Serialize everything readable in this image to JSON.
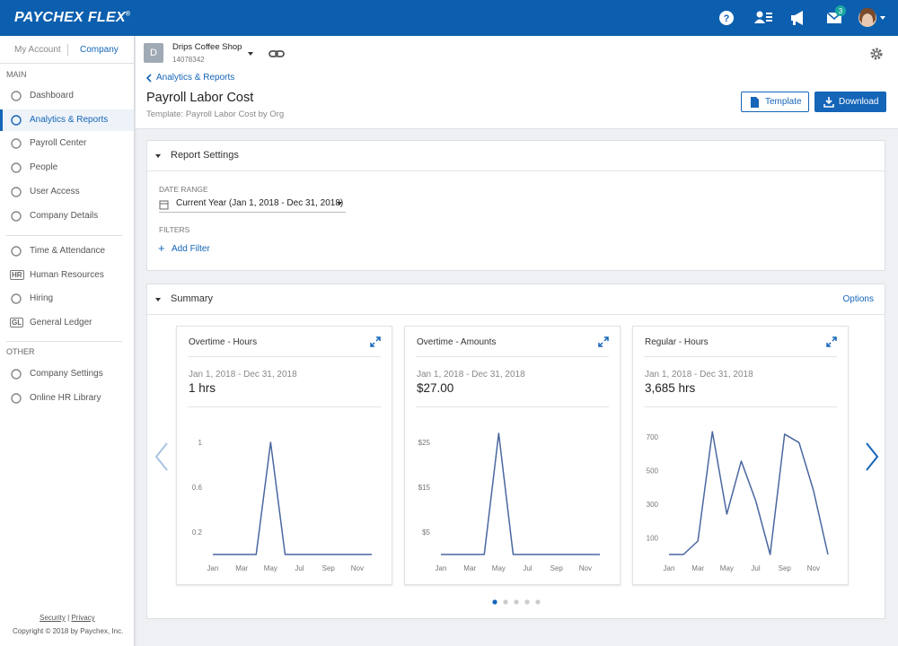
{
  "header": {
    "brand": "PAYCHEX FLEX",
    "brand_mark": "®",
    "badge": "3"
  },
  "sidebar": {
    "tabs": [
      "My Account",
      "Company"
    ],
    "main_label": "MAIN",
    "main": [
      {
        "label": "Dashboard"
      },
      {
        "label": "Analytics & Reports",
        "active": true
      },
      {
        "label": "Payroll Center"
      },
      {
        "label": "People"
      },
      {
        "label": "User Access"
      },
      {
        "label": "Company Details"
      }
    ],
    "more": [
      {
        "label": "Time & Attendance"
      },
      {
        "label": "Human Resources",
        "icon": "HR"
      },
      {
        "label": "Hiring"
      },
      {
        "label": "General Ledger",
        "icon": "GL"
      }
    ],
    "other_label": "OTHER",
    "other": [
      {
        "label": "Company Settings"
      },
      {
        "label": "Online HR Library"
      }
    ],
    "footer_links": [
      "Security",
      "Privacy"
    ],
    "footer_separator": "|",
    "copyright": "Copyright © 2018 by Paychex, Inc."
  },
  "company": {
    "initial": "D",
    "name": "Drips Coffee Shop",
    "id": "14078342"
  },
  "breadcrumb": "Analytics & Reports",
  "page": {
    "title": "Payroll Labor Cost",
    "subtitle": "Template: Payroll Labor Cost by Org"
  },
  "buttons": {
    "template": "Template",
    "download": "Download"
  },
  "report_settings": {
    "title": "Report Settings",
    "date_range_label": "DATE RANGE",
    "date_range": "Current Year (Jan 1, 2018 - Dec 31, 2018)",
    "filters_label": "FILTERS",
    "add_filter": "Add Filter"
  },
  "summary": {
    "title": "Summary",
    "options": "Options"
  },
  "chart_data": [
    {
      "type": "line",
      "title": "Overtime - Hours",
      "date_range": "Jan 1, 2018 - Dec 31, 2018",
      "total": "1 hrs",
      "categories": [
        "Jan",
        null,
        "Mar",
        null,
        "May",
        null,
        "Jul",
        null,
        "Sep",
        null,
        "Nov",
        null
      ],
      "values": [
        0,
        0,
        0,
        0,
        1,
        0,
        0,
        0,
        0,
        0,
        0,
        0
      ],
      "color": "#4a679f",
      "ylim": [
        0,
        1.2
      ],
      "yticks": [
        0.2,
        0.6,
        1
      ],
      "grid": false
    },
    {
      "type": "line",
      "title": "Overtime - Amounts",
      "date_range": "Jan 1, 2018 - Dec 31, 2018",
      "total": "$27.00",
      "categories": [
        "Jan",
        null,
        "Mar",
        null,
        "May",
        null,
        "Jul",
        null,
        "Sep",
        null,
        "Nov",
        null
      ],
      "values": [
        0,
        0,
        0,
        0,
        27,
        0,
        0,
        0,
        0,
        0,
        0,
        0
      ],
      "color": "#4a679f",
      "ylim": [
        0,
        30
      ],
      "yticks": [
        {
          "value": 5,
          "label": "$5"
        },
        {
          "value": 15,
          "label": "$15"
        },
        {
          "value": 25,
          "label": "$25"
        }
      ],
      "grid": false
    },
    {
      "type": "line",
      "title": "Regular - Hours",
      "date_range": "Jan 1, 2018 - Dec 31, 2018",
      "total": "3,685 hrs",
      "categories": [
        "Jan",
        null,
        "Mar",
        null,
        "May",
        null,
        "Jul",
        null,
        "Sep",
        null,
        "Nov",
        null
      ],
      "values": [
        0,
        0,
        80,
        730,
        240,
        555,
        320,
        0,
        715,
        665,
        380,
        0
      ],
      "color": "#4a679f",
      "ylim": [
        0,
        800
      ],
      "yticks": [
        100,
        300,
        500,
        700
      ],
      "grid": false
    }
  ]
}
